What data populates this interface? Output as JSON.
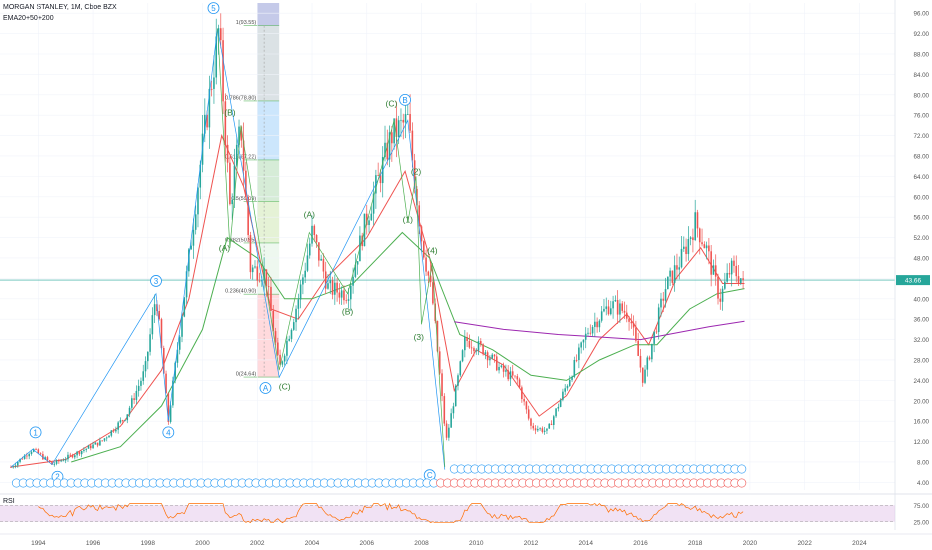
{
  "header": {
    "symbol_line": "MORGAN STANLEY, 1M, Cboe BZX",
    "indicator_line": "EMA20+50+200"
  },
  "rsi_panel": {
    "label": "RSI",
    "ticks": [
      "75.00",
      "25.00"
    ],
    "range": [
      0,
      100
    ],
    "band": [
      25,
      75
    ]
  },
  "last_price": "43.66",
  "colors": {
    "up": "#26a69a",
    "down": "#ef5350",
    "ema20": "#ef5350",
    "ema50": "#4caf50",
    "ema200": "#9c27b0",
    "elliott_blue": "#2196f3",
    "elliott_green": "#4caf50",
    "rsi_line": "#ff6d00",
    "rsi_band": "#e1bee7",
    "price_line": "#26a69a"
  },
  "chart_data": {
    "type": "candlestick",
    "title": "",
    "x_axis": {
      "ticks": [
        "1994",
        "1996",
        "1998",
        "2000",
        "2002",
        "2004",
        "2006",
        "2008",
        "2010",
        "2012",
        "2014",
        "2016",
        "2018",
        "2020",
        "2022",
        "2024"
      ],
      "range": [
        1992.6,
        2025.3
      ]
    },
    "y_axis": {
      "ticks": [
        "4.00",
        "8.00",
        "12.00",
        "16.00",
        "20.00",
        "24.00",
        "28.00",
        "32.00",
        "36.00",
        "40.00",
        "44.00",
        "48.00",
        "52.00",
        "56.00",
        "60.00",
        "64.00",
        "68.00",
        "72.00",
        "76.00",
        "80.00",
        "84.00",
        "88.00",
        "92.00",
        "96.00"
      ],
      "range": [
        2.5,
        98
      ]
    },
    "price_anchors": [
      [
        1993.0,
        7.0
      ],
      [
        1993.8,
        10.5
      ],
      [
        1994.5,
        7.5
      ],
      [
        1995.3,
        9.5
      ],
      [
        1996.3,
        12
      ],
      [
        1997.2,
        17
      ],
      [
        1997.9,
        26
      ],
      [
        1998.3,
        41
      ],
      [
        1998.75,
        16
      ],
      [
        1999.5,
        48
      ],
      [
        2000.0,
        70
      ],
      [
        2000.6,
        93
      ],
      [
        2001.0,
        58
      ],
      [
        2001.4,
        74
      ],
      [
        2001.75,
        46
      ],
      [
        2002.3,
        45
      ],
      [
        2002.8,
        26
      ],
      [
        2003.5,
        40
      ],
      [
        2004.0,
        53
      ],
      [
        2004.6,
        42
      ],
      [
        2005.3,
        41
      ],
      [
        2005.9,
        54
      ],
      [
        2006.9,
        72
      ],
      [
        2007.5,
        75
      ],
      [
        2008.0,
        52
      ],
      [
        2008.4,
        40
      ],
      [
        2008.9,
        12
      ],
      [
        2009.6,
        32
      ],
      [
        2010.3,
        30
      ],
      [
        2010.9,
        26
      ],
      [
        2011.5,
        24
      ],
      [
        2012.0,
        15
      ],
      [
        2012.6,
        14
      ],
      [
        2013.3,
        23
      ],
      [
        2014.1,
        34
      ],
      [
        2014.9,
        39
      ],
      [
        2015.6,
        37
      ],
      [
        2016.1,
        24
      ],
      [
        2016.9,
        42
      ],
      [
        2017.5,
        48
      ],
      [
        2018.0,
        55
      ],
      [
        2018.4,
        50
      ],
      [
        2018.9,
        40
      ],
      [
        2019.3,
        46
      ],
      [
        2019.75,
        43.66
      ]
    ],
    "series": [
      {
        "name": "EMA20",
        "points": [
          [
            1993.0,
            7
          ],
          [
            1995,
            8.5
          ],
          [
            1997,
            15
          ],
          [
            1998.5,
            26
          ],
          [
            1999.5,
            40
          ],
          [
            2000.7,
            72
          ],
          [
            2001.5,
            62
          ],
          [
            2002.5,
            38
          ],
          [
            2003.5,
            36
          ],
          [
            2004.5,
            44
          ],
          [
            2006.0,
            52
          ],
          [
            2007.4,
            65
          ],
          [
            2008.3,
            48
          ],
          [
            2009.2,
            22
          ],
          [
            2010,
            30
          ],
          [
            2011,
            27
          ],
          [
            2012.3,
            17
          ],
          [
            2013.3,
            21
          ],
          [
            2014.5,
            32
          ],
          [
            2015.5,
            37
          ],
          [
            2016.3,
            31
          ],
          [
            2017.3,
            44
          ],
          [
            2018.2,
            50
          ],
          [
            2019.0,
            43
          ],
          [
            2019.8,
            43
          ]
        ]
      },
      {
        "name": "EMA50",
        "points": [
          [
            1995.2,
            8
          ],
          [
            1997,
            11
          ],
          [
            1998.5,
            19
          ],
          [
            2000,
            34
          ],
          [
            2000.9,
            52
          ],
          [
            2002,
            48
          ],
          [
            2003,
            40
          ],
          [
            2004,
            40
          ],
          [
            2005.5,
            43
          ],
          [
            2007.3,
            53
          ],
          [
            2008.3,
            48
          ],
          [
            2009.4,
            33
          ],
          [
            2010.6,
            30
          ],
          [
            2012,
            25
          ],
          [
            2013.3,
            24
          ],
          [
            2014.5,
            28
          ],
          [
            2015.8,
            31
          ],
          [
            2016.6,
            31
          ],
          [
            2017.8,
            38
          ],
          [
            2018.8,
            41
          ],
          [
            2019.8,
            42
          ]
        ]
      },
      {
        "name": "EMA200",
        "points": [
          [
            2009.2,
            35.5
          ],
          [
            2011,
            34
          ],
          [
            2013,
            33
          ],
          [
            2014.5,
            32.5
          ],
          [
            2016,
            32
          ],
          [
            2017,
            33
          ],
          [
            2018.5,
            34.5
          ],
          [
            2019.8,
            35.6
          ]
        ]
      }
    ],
    "annotations": {
      "waves_blue": [
        {
          "label": "1",
          "x": 1993.9,
          "y": 13.8
        },
        {
          "label": "2",
          "x": 1994.7,
          "y": 5.1
        },
        {
          "label": "3",
          "x": 1998.3,
          "y": 43.5
        },
        {
          "label": "4",
          "x": 1998.75,
          "y": 13.8
        },
        {
          "label": "5",
          "x": 2000.4,
          "y": 97
        },
        {
          "label": "A",
          "x": 2002.3,
          "y": 22.5
        },
        {
          "label": "B",
          "x": 2007.4,
          "y": 79
        },
        {
          "label": "C",
          "x": 2008.3,
          "y": 5.4
        }
      ],
      "waves_green": [
        {
          "label": "(B)",
          "x": 2001.0,
          "y": 76.5
        },
        {
          "label": "(A)",
          "x": 2000.8,
          "y": 50
        },
        {
          "label": "(C)",
          "x": 2003.0,
          "y": 22.8
        },
        {
          "label": "(A)",
          "x": 2003.9,
          "y": 56.5
        },
        {
          "label": "(B)",
          "x": 2005.3,
          "y": 37.5
        },
        {
          "label": "(C)",
          "x": 2006.9,
          "y": 78.3
        },
        {
          "label": "(2)",
          "x": 2007.8,
          "y": 65
        },
        {
          "label": "(1)",
          "x": 2007.5,
          "y": 55.5
        },
        {
          "label": "(4)",
          "x": 2008.4,
          "y": 49.5
        },
        {
          "label": "(3)",
          "x": 2007.9,
          "y": 32.5
        }
      ],
      "fib_levels": [
        {
          "label": "1(93.55)",
          "value": 93.55
        },
        {
          "label": "0.786(78.80)",
          "value": 78.8
        },
        {
          "label": "0.618(67.22)",
          "value": 67.22
        },
        {
          "label": "0.5(59.09)",
          "value": 59.09
        },
        {
          "label": "0.382(50.95)",
          "value": 50.95
        },
        {
          "label": "0.236(40.90)",
          "value": 40.9
        },
        {
          "label": "0(24.64)",
          "value": 24.64
        }
      ]
    }
  }
}
